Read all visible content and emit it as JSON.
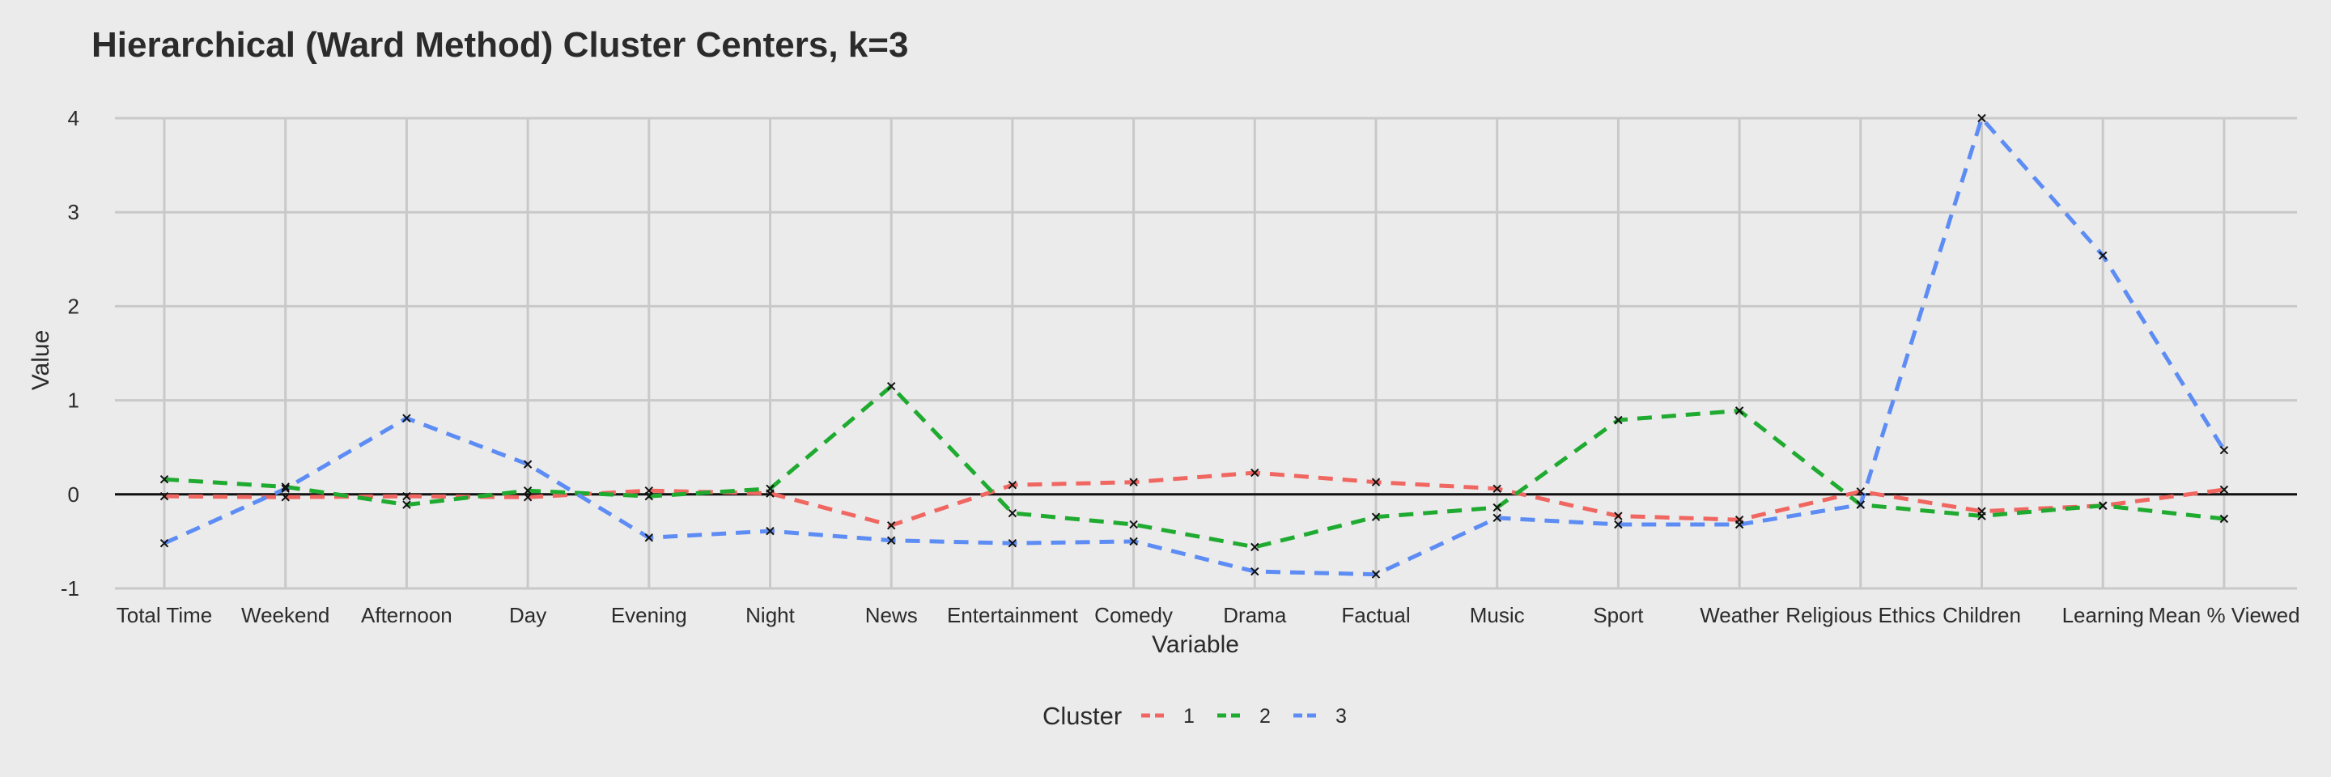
{
  "chart_data": {
    "type": "line",
    "title": "Hierarchical (Ward Method) Cluster Centers, k=3",
    "xlabel": "Variable",
    "ylabel": "Value",
    "ylim": [
      -1,
      4
    ],
    "yticks": [
      -1,
      0,
      1,
      2,
      3,
      4
    ],
    "grid": true,
    "legend_position": "bottom",
    "legend_title": "Cluster",
    "categories": [
      "Total Time",
      "Weekend",
      "Afternoon",
      "Day",
      "Evening",
      "Night",
      "News",
      "Entertainment",
      "Comedy",
      "Drama",
      "Factual",
      "Music",
      "Sport",
      "Weather",
      "Religious Ethics",
      "Children",
      "Learning",
      "Mean % Viewed"
    ],
    "series": [
      {
        "name": "1",
        "color": "#f06660",
        "values": [
          -0.02,
          -0.03,
          -0.02,
          -0.03,
          0.04,
          0.01,
          -0.33,
          0.1,
          0.13,
          0.23,
          0.13,
          0.06,
          -0.23,
          -0.27,
          0.03,
          -0.18,
          -0.12,
          0.05
        ]
      },
      {
        "name": "2",
        "color": "#1faa30",
        "values": [
          0.16,
          0.08,
          -0.11,
          0.04,
          -0.02,
          0.06,
          1.15,
          -0.2,
          -0.32,
          -0.56,
          -0.24,
          -0.14,
          0.79,
          0.89,
          -0.11,
          -0.23,
          -0.12,
          -0.26
        ]
      },
      {
        "name": "3",
        "color": "#5c8cf4",
        "values": [
          -0.52,
          0.06,
          0.81,
          0.32,
          -0.46,
          -0.39,
          -0.49,
          -0.52,
          -0.5,
          -0.82,
          -0.85,
          -0.25,
          -0.32,
          -0.32,
          -0.11,
          4.0,
          2.54,
          0.47
        ]
      }
    ]
  }
}
